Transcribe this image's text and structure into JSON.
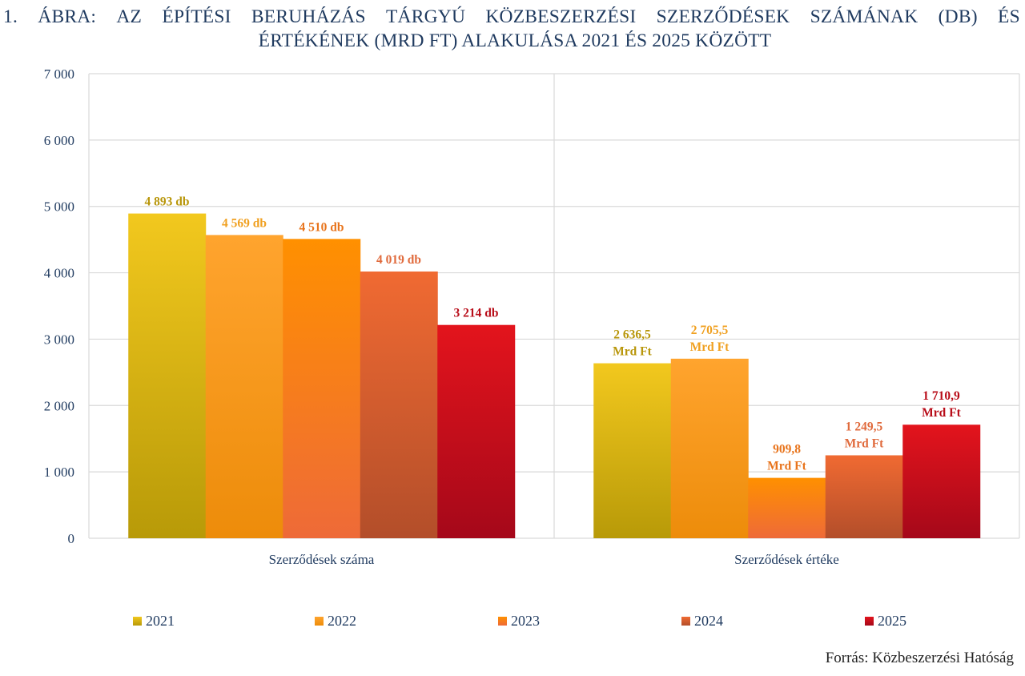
{
  "title": {
    "number": "1.",
    "line1_words": [
      "ÁBRA:",
      "AZ",
      "ÉPÍTÉSI",
      "BERUHÁZÁS",
      "TÁRGYÚ",
      "KÖZBESZERZÉSI",
      "SZERZŐDÉSEK",
      "SZÁMÁNAK",
      "(DB)",
      "ÉS"
    ],
    "line2": "ÉRTÉKÉNEK (MRD FT) ALAKULÁSA 2021 ÉS 2025 KÖZÖTT"
  },
  "source": "Forrás: Közbeszerzési Hatóság",
  "chart_data": {
    "type": "bar",
    "title": "1. ÁBRA: AZ ÉPÍTÉSI BERUHÁZÁS TÁRGYÚ KÖZBESZERZÉSI SZERZŐDÉSEK SZÁMÁNAK (DB) ÉS ÉRTÉKÉNEK (MRD FT) ALAKULÁSA 2021 ÉS 2025 KÖZÖTT",
    "categories": [
      "Szerződések száma",
      "Szerződések értéke"
    ],
    "ylim": [
      0,
      7000
    ],
    "yticks": [
      0,
      1000,
      2000,
      3000,
      4000,
      5000,
      6000,
      7000
    ],
    "ytick_labels": [
      "0",
      "1 000",
      "2 000",
      "3 000",
      "4 000",
      "5 000",
      "6 000",
      "7 000"
    ],
    "grid": true,
    "legend_position": "bottom",
    "series": [
      {
        "name": "2021",
        "values": [
          4893,
          2636.5
        ],
        "labels": [
          "4 893 db",
          "2 636,5|Mrd Ft"
        ],
        "color_top": "#f2c81e",
        "color_bottom": "#b89a08",
        "label_color": "#b8960a"
      },
      {
        "name": "2022",
        "values": [
          4569,
          2705.5
        ],
        "labels": [
          "4 569 db",
          "2 705,5|Mrd Ft"
        ],
        "color_top": "#ffa42e",
        "color_bottom": "#ed8c0a",
        "label_color": "#f0a020"
      },
      {
        "name": "2023",
        "values": [
          4510,
          909.8
        ],
        "labels": [
          "4 510 db",
          "909,8|Mrd Ft"
        ],
        "color_top": "#ff9000",
        "color_bottom": "#ee6a38",
        "label_color": "#e8741c"
      },
      {
        "name": "2024",
        "values": [
          4019,
          1249.5
        ],
        "labels": [
          "4 019 db",
          "1 249,5|Mrd Ft"
        ],
        "color_top": "#f06a32",
        "color_bottom": "#b34e2a",
        "label_color": "#e06a3c"
      },
      {
        "name": "2025",
        "values": [
          3214,
          1710.9
        ],
        "labels": [
          "3 214 db",
          "1 710,9|Mrd Ft"
        ],
        "color_top": "#e3141c",
        "color_bottom": "#a5081a",
        "label_color": "#b80c18"
      }
    ]
  }
}
